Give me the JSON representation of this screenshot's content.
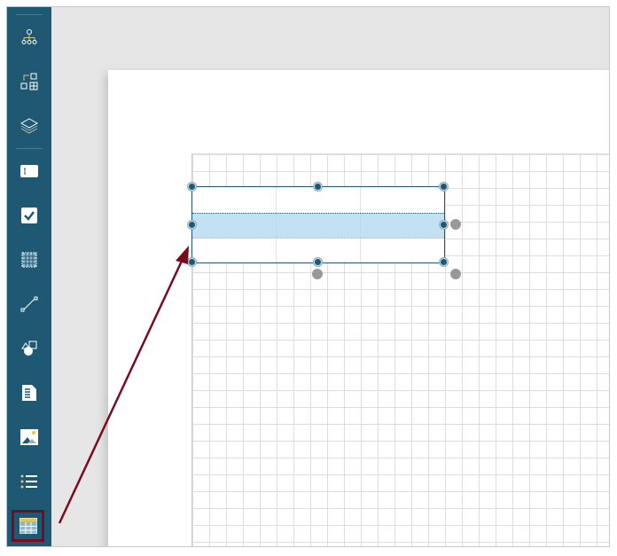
{
  "colors": {
    "sidebar": "#1f5873",
    "selection": "#7a0a1e",
    "row_highlight": "#c2e1f3",
    "arrow": "#7a0a1e"
  },
  "sidebar": {
    "tools": [
      {
        "icon": "hierarchy-icon"
      },
      {
        "icon": "add-element-icon"
      },
      {
        "icon": "layers-icon"
      },
      {
        "icon": "text-field-icon"
      },
      {
        "icon": "checkbox-icon"
      },
      {
        "icon": "grid-icon"
      },
      {
        "icon": "line-icon"
      },
      {
        "icon": "shapes-icon"
      },
      {
        "icon": "document-icon"
      },
      {
        "icon": "image-icon"
      },
      {
        "icon": "list-icon"
      },
      {
        "icon": "table-icon",
        "selected": true
      }
    ]
  },
  "canvas": {
    "table": {
      "rows": 3,
      "columns": 3,
      "highlighted_row": 2
    }
  }
}
